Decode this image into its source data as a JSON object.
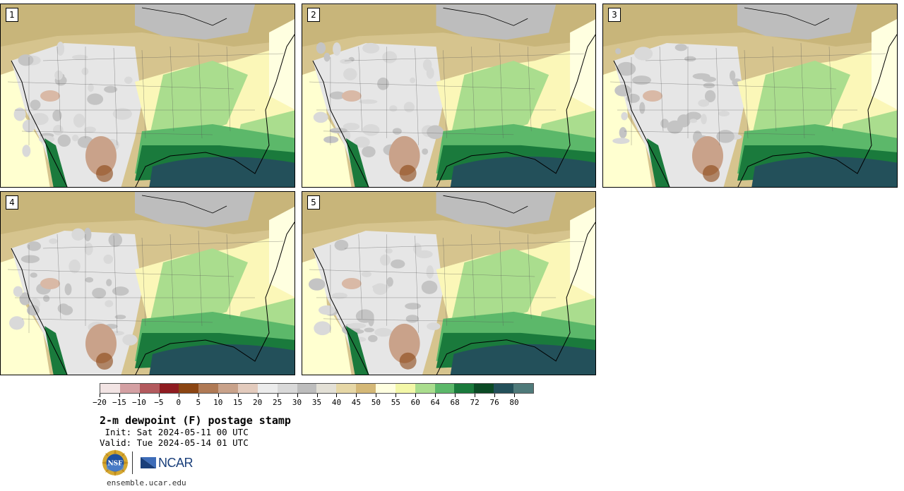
{
  "panels": [
    {
      "label": "1"
    },
    {
      "label": "2"
    },
    {
      "label": "3"
    },
    {
      "label": "4"
    },
    {
      "label": "5"
    }
  ],
  "colorbar": {
    "colors": [
      "#f2e4e4",
      "#d4a0a3",
      "#b35a5e",
      "#8f1c21",
      "#8b4513",
      "#b07a55",
      "#c9a28a",
      "#e3cbbd",
      "#ececec",
      "#d9d9d9",
      "#bdbdbd",
      "#e3e0d6",
      "#e6d7a6",
      "#d4b877",
      "#ffffe0",
      "#f3f7a8",
      "#aadd8e",
      "#5cb86a",
      "#1a7a3c",
      "#0b4a25",
      "#23505a",
      "#4f7a7a"
    ],
    "tick_labels": [
      "−20",
      "−15",
      "−10",
      "−5",
      "0",
      "5",
      "10",
      "15",
      "20",
      "25",
      "30",
      "35",
      "40",
      "45",
      "50",
      "55",
      "60",
      "64",
      "68",
      "72",
      "76",
      "80"
    ]
  },
  "title": "2-m dewpoint (F) postage stamp",
  "init": " Init: Sat 2024-05-11 00 UTC",
  "valid": "Valid: Tue 2024-05-14 01 UTC",
  "logos": {
    "nsf": "NSF",
    "ncar": "NCAR"
  },
  "site": "ensemble.ucar.edu"
}
